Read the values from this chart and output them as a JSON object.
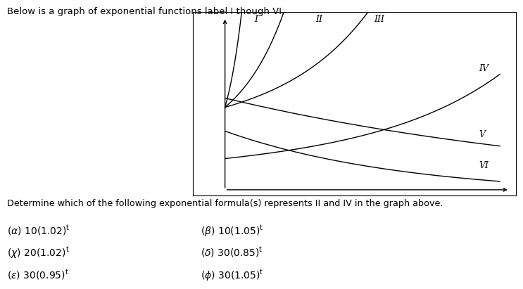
{
  "title_text": "Below is a graph of exponential functions label I though VI.",
  "question_text": "Determine which of the following exponential formula(s) represents II and IV in the graph above.",
  "options": [
    [
      "(a) 10(1.02)",
      "(B) 10(1.05)"
    ],
    [
      "(X) 20(1.02)",
      "(d) 30(0.85)"
    ],
    [
      "(e) 30(0.95)",
      "(0) 30(1.05)"
    ]
  ],
  "bg_color": "#ffffff",
  "text_color": "#000000",
  "line_color": "#000000",
  "box_color": "#000000"
}
